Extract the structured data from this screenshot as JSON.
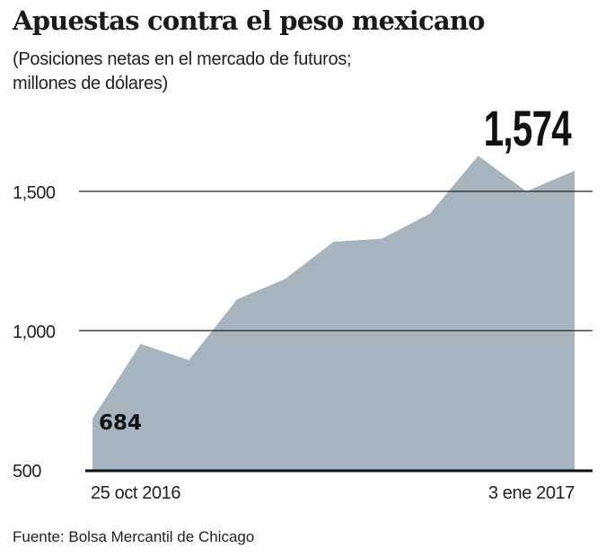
{
  "chart_data": {
    "type": "area",
    "title": "Apuestas contra el peso mexicano",
    "subtitle_lines": [
      "(Posiciones netas en el mercado de futuros;",
      "millones de dólares)"
    ],
    "x": [
      0,
      1,
      2,
      3,
      4,
      5,
      6,
      7,
      8,
      9,
      10
    ],
    "values": [
      684,
      952,
      894,
      1112,
      1186,
      1319,
      1330,
      1420,
      1628,
      1500,
      1574
    ],
    "x_tick_labels": [
      {
        "x": 0,
        "label": "25 oct 2016"
      },
      {
        "x": 10,
        "label": "3 ene 2017"
      }
    ],
    "y_ticks": [
      500,
      1000,
      1500
    ],
    "y_tick_labels": [
      "500",
      "1,000",
      "1,500"
    ],
    "ylim": [
      500,
      1700
    ],
    "grid": "horizontal",
    "data_labels": [
      {
        "x": 0,
        "label": "684"
      },
      {
        "x": 10,
        "label": "1,574"
      }
    ],
    "colors": {
      "fill": "#a6b4bf",
      "grid": "#222222"
    },
    "source": "Fuente: Bolsa Mercantil de Chicago"
  }
}
